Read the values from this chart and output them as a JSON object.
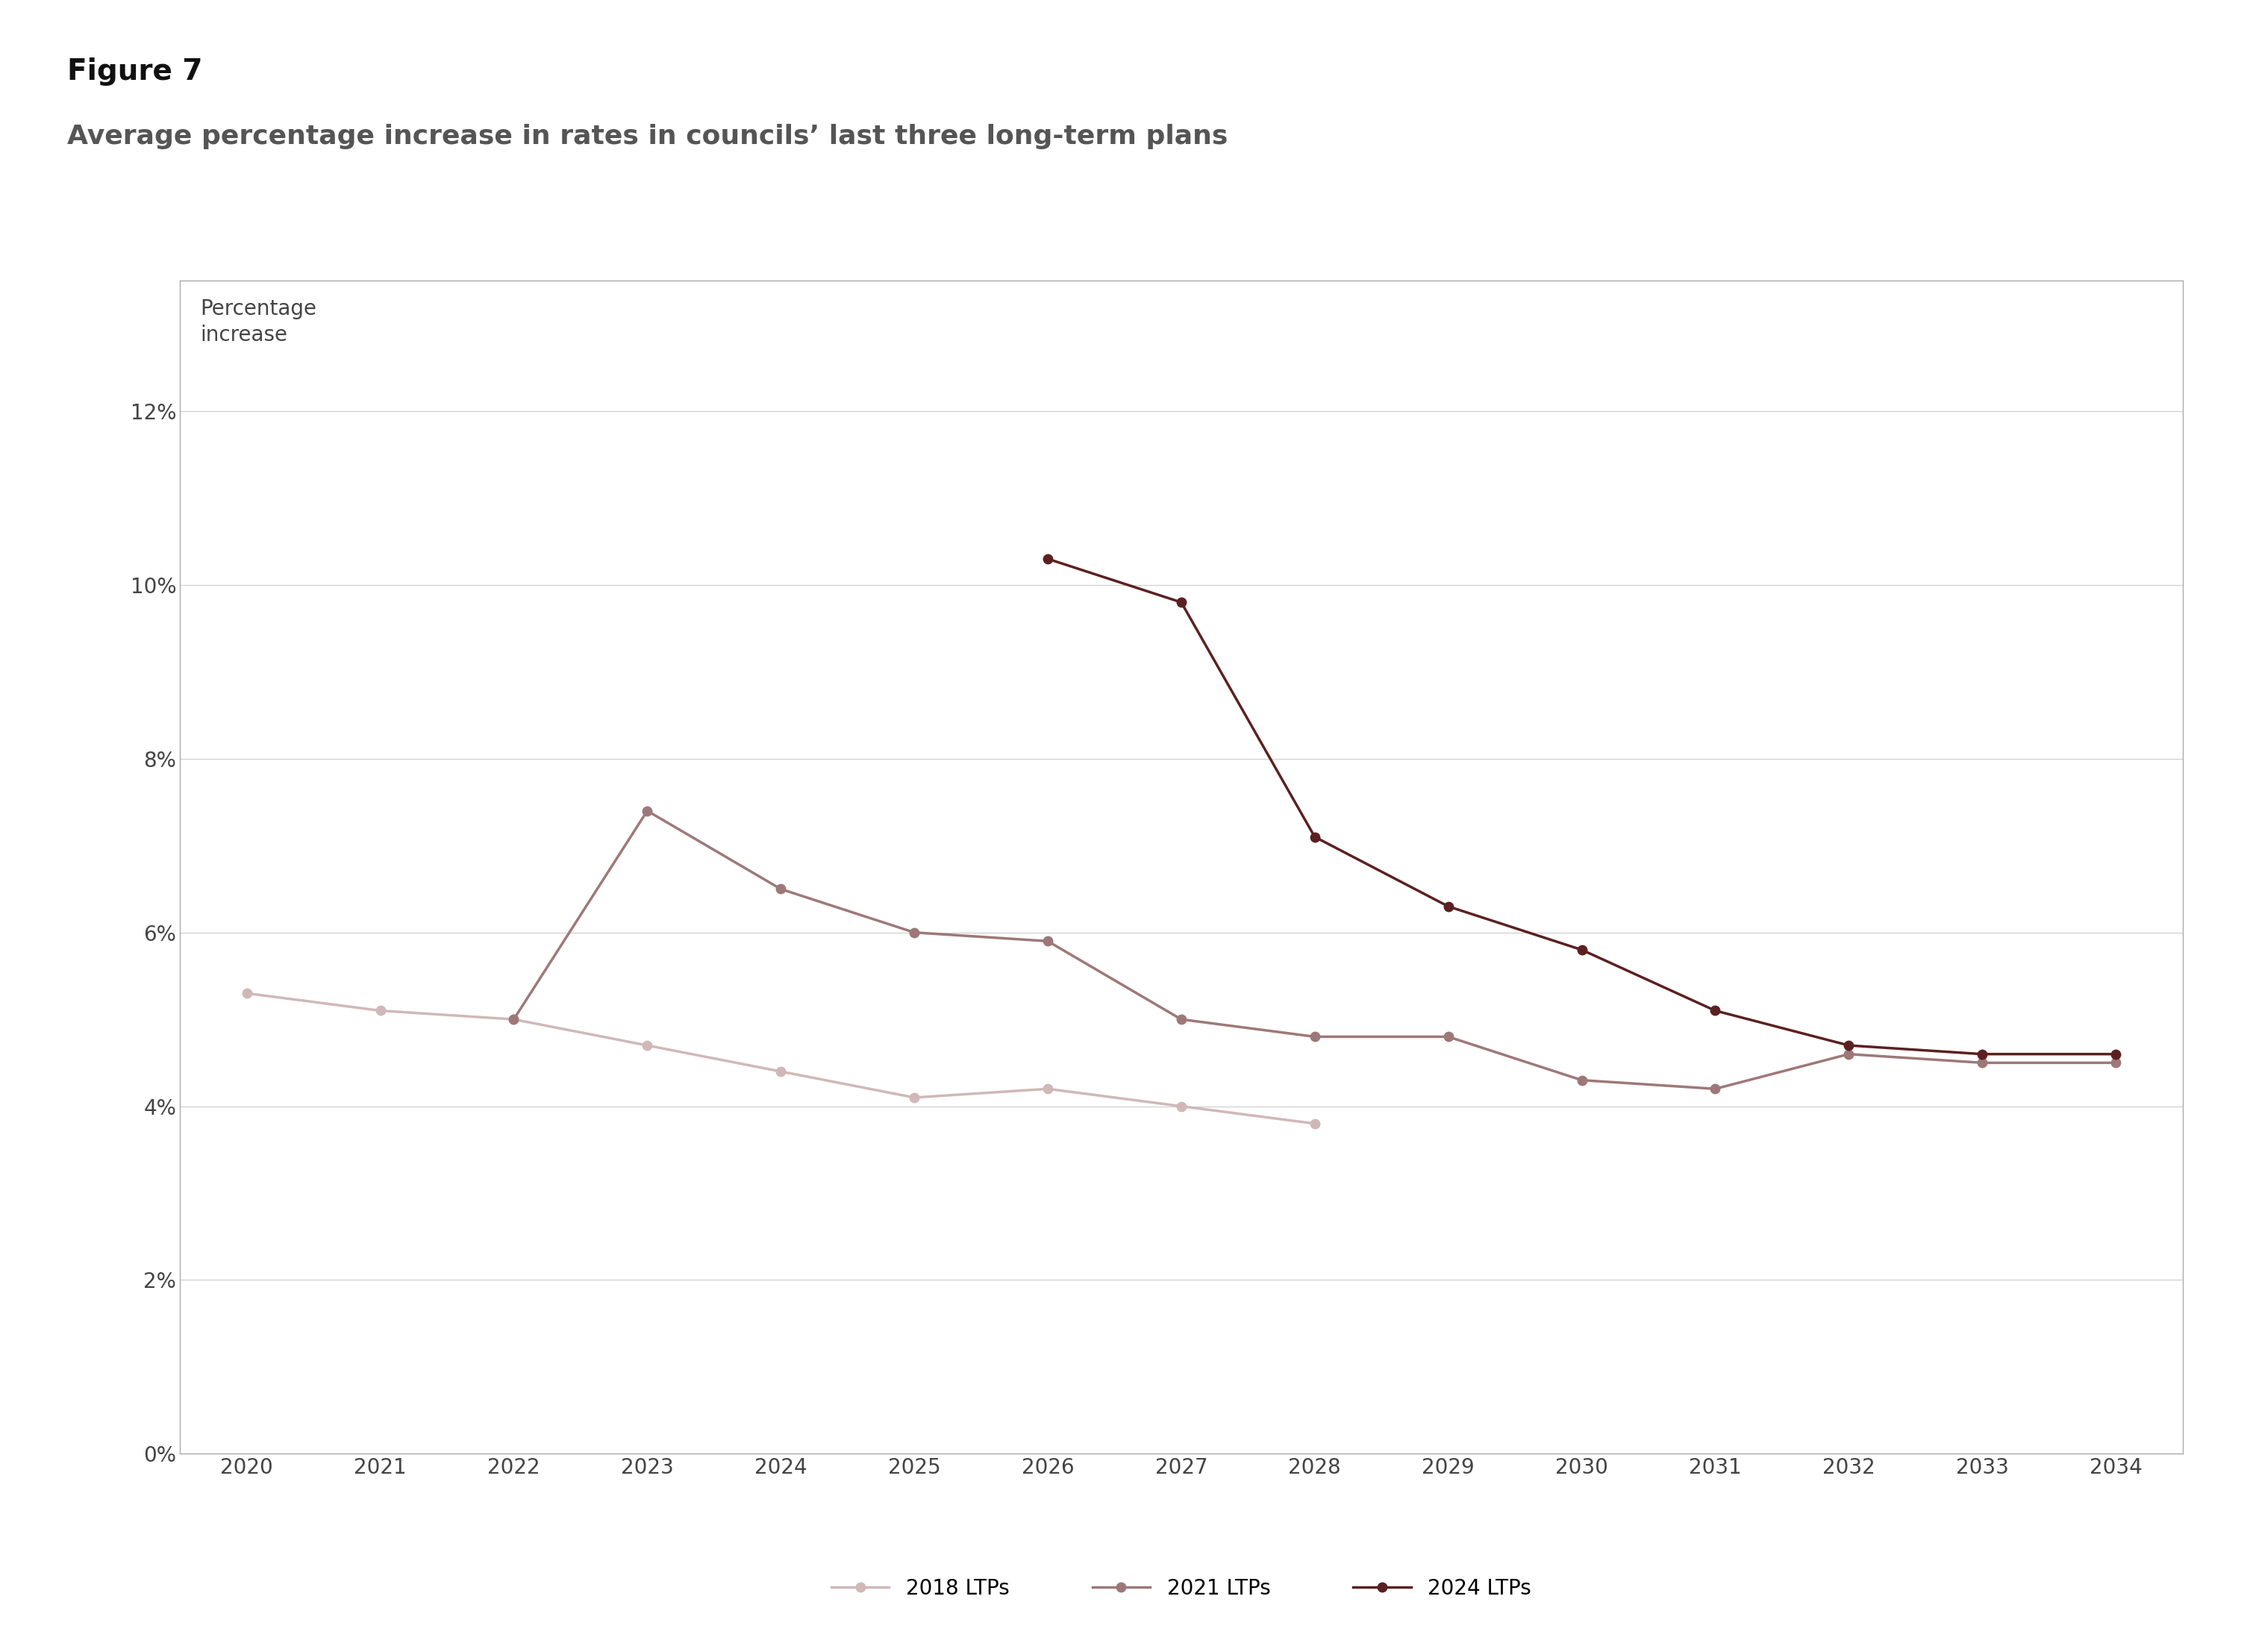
{
  "figure_label": "Figure 7",
  "title": "Average percentage increase in rates in councils’ last three long-term plans",
  "ylabel_line1": "Percentage",
  "ylabel_line2": "increase",
  "background_color": "#ffffff",
  "plot_bg_color": "#ffffff",
  "grid_color": "#cccccc",
  "series": [
    {
      "label": "2018 LTPs",
      "color": "#d0b8b8",
      "marker_color": "#d0b8b8",
      "linewidth": 2.5,
      "markersize": 9,
      "x": [
        2020,
        2021,
        2022,
        2023,
        2024,
        2025,
        2026,
        2027,
        2028
      ],
      "y": [
        0.053,
        0.051,
        0.05,
        0.047,
        0.044,
        0.041,
        0.042,
        0.04,
        0.038
      ]
    },
    {
      "label": "2021 LTPs",
      "color": "#9e7878",
      "marker_color": "#9e7878",
      "linewidth": 2.5,
      "markersize": 9,
      "x": [
        2022,
        2023,
        2024,
        2025,
        2026,
        2027,
        2028,
        2029,
        2030,
        2031,
        2032,
        2033,
        2034
      ],
      "y": [
        0.05,
        0.074,
        0.065,
        0.06,
        0.059,
        0.05,
        0.048,
        0.048,
        0.043,
        0.042,
        0.046,
        0.045,
        0.045
      ]
    },
    {
      "label": "2024 LTPs",
      "color": "#5c2020",
      "marker_color": "#5c2020",
      "linewidth": 2.5,
      "markersize": 9,
      "x": [
        2026,
        2027,
        2028,
        2029,
        2030,
        2031,
        2032,
        2033,
        2034
      ],
      "y": [
        0.103,
        0.098,
        0.071,
        0.063,
        0.058,
        0.051,
        0.047,
        0.046,
        0.046
      ]
    }
  ],
  "xlim": [
    2019.5,
    2034.5
  ],
  "ylim": [
    0.0,
    0.135
  ],
  "yticks": [
    0.0,
    0.02,
    0.04,
    0.06,
    0.08,
    0.1,
    0.12
  ],
  "xticks": [
    2020,
    2021,
    2022,
    2023,
    2024,
    2025,
    2026,
    2027,
    2028,
    2029,
    2030,
    2031,
    2032,
    2033,
    2034
  ],
  "legend_ncol": 3,
  "figure_label_fontsize": 28,
  "title_fontsize": 26,
  "ylabel_fontsize": 20,
  "tick_fontsize": 20,
  "legend_fontsize": 20
}
